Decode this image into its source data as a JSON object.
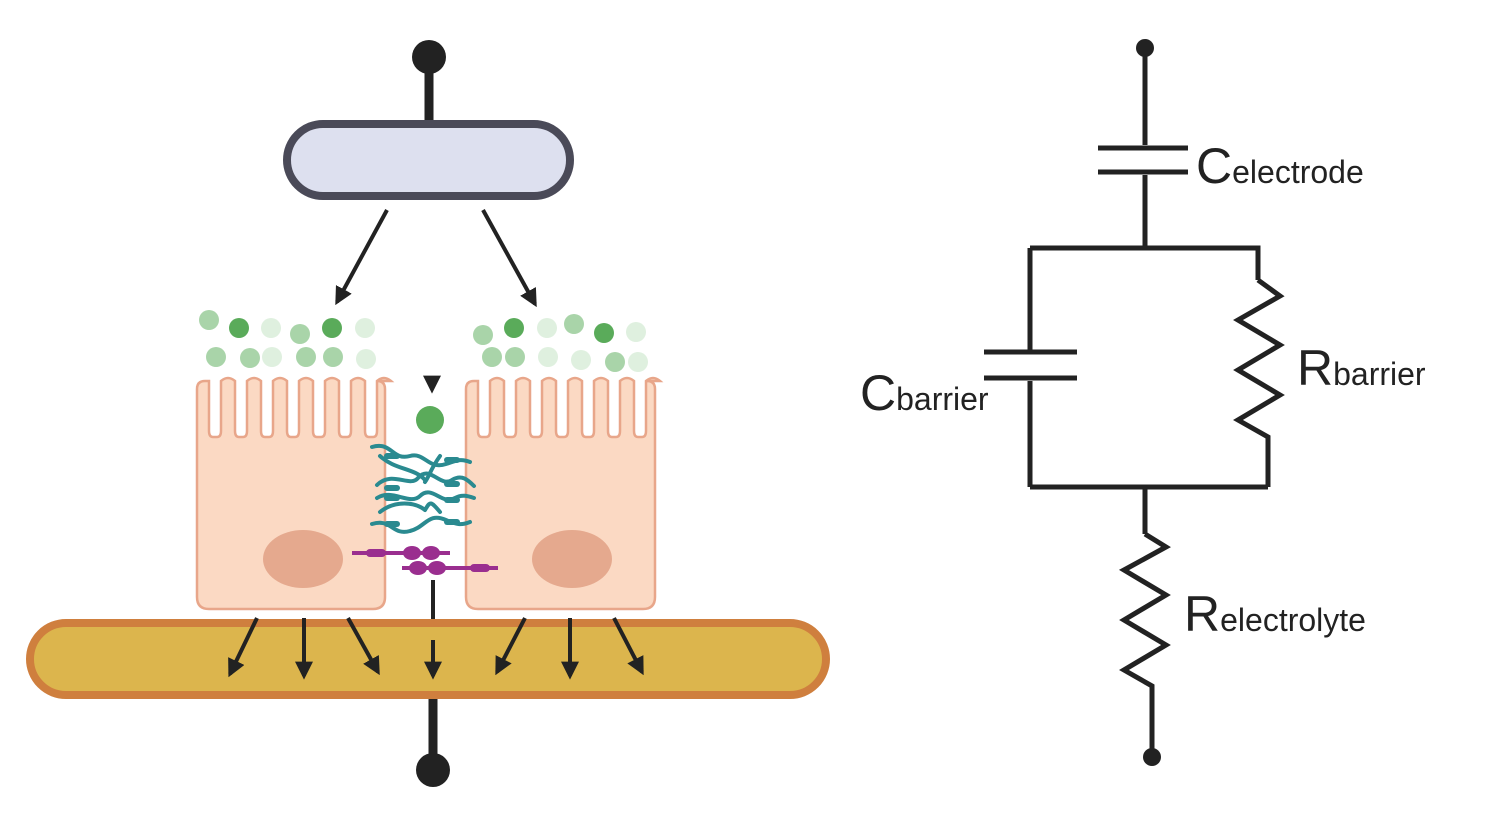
{
  "circuit": {
    "labels": [
      {
        "id": "c-electrode",
        "main": "C",
        "sub": "electrode"
      },
      {
        "id": "c-barrier",
        "main": "C",
        "sub": "barrier"
      },
      {
        "id": "r-barrier",
        "main": "R",
        "sub": "barrier"
      },
      {
        "id": "r-electrolyte",
        "main": "R",
        "sub": "electrolyte"
      }
    ]
  },
  "colors": {
    "wire": "#222222",
    "top_electrode_fill": "#dde0ef",
    "top_electrode_stroke": "#4a4a58",
    "bottom_electrode_fill": "#dcb54d",
    "bottom_electrode_stroke": "#cf7f3e",
    "cell_fill": "#fbd9c3",
    "cell_stroke": "#e8a68a",
    "nucleus": "#e5a98e",
    "tight_junction": "#2a8a90",
    "adherens_junction": "#9a2e8f",
    "ion_dark": "#5aab5a",
    "ion_light": "#c9e6c9"
  },
  "icons": [
    "top-terminal-icon",
    "bottom-terminal-icon",
    "ion-icon",
    "arrow-icon"
  ]
}
